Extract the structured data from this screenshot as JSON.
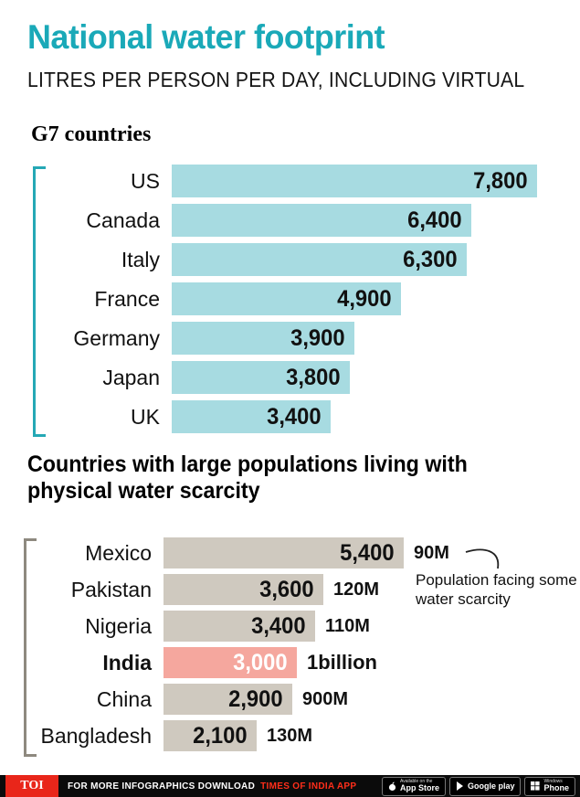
{
  "header": {
    "title": "National water footprint",
    "subtitle": "LITRES PER PERSON PER DAY, INCLUDING VIRTUAL"
  },
  "colors": {
    "accent_teal": "#1aa9b8",
    "g7_bar": "#a7dbe1",
    "g7_bracket": "#25a8b5",
    "scarcity_bar": "#cfc9bf",
    "scarcity_bracket": "#8e897f",
    "india_bar": "#f5a79e",
    "footer_red": "#e9261a"
  },
  "chart_data": [
    {
      "type": "bar",
      "title": "G7 countries",
      "ylabel": "",
      "xlabel": "Litres per person per day",
      "categories": [
        "US",
        "Canada",
        "Italy",
        "France",
        "Germany",
        "Japan",
        "UK"
      ],
      "values": [
        7800,
        6400,
        6300,
        4900,
        3900,
        3800,
        3400
      ],
      "value_labels": [
        "7,800",
        "6,400",
        "6,300",
        "4,900",
        "3,900",
        "3,800",
        "3,400"
      ],
      "xlim": [
        0,
        7800
      ],
      "grid": false,
      "legend": false
    },
    {
      "type": "bar",
      "title": "Countries with large populations living with physical water scarcity",
      "ylabel": "",
      "xlabel": "Litres per person per day",
      "categories": [
        "Mexico",
        "Pakistan",
        "Nigeria",
        "India",
        "China",
        "Bangladesh"
      ],
      "values": [
        5400,
        3600,
        3400,
        3000,
        2900,
        2100
      ],
      "value_labels": [
        "5,400",
        "3,600",
        "3,400",
        "3,000",
        "2,900",
        "2,100"
      ],
      "populations": [
        "90M",
        "120M",
        "110M",
        "1billion",
        "900M",
        "130M"
      ],
      "highlight_index": 3,
      "annotation": "Population facing some water scarcity",
      "xlim": [
        0,
        5400
      ],
      "grid": false,
      "legend": false
    }
  ],
  "footer": {
    "logo": "TOI",
    "text_white": "FOR MORE  INFOGRAPHICS DOWNLOAD",
    "text_red": "TIMES OF INDIA APP",
    "badges": [
      {
        "top": "Available on the",
        "bottom": "App Store"
      },
      {
        "top": "",
        "bottom": "Google play"
      },
      {
        "top": "Windows",
        "bottom": "Phone"
      }
    ]
  }
}
